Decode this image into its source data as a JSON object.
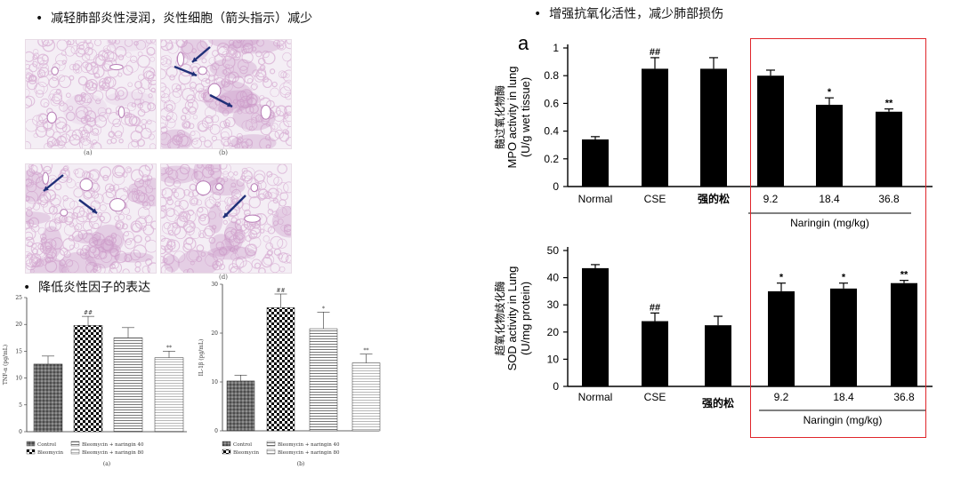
{
  "bullets": {
    "b1": "减轻肺部炎性浸润，炎性细胞（箭头指示）减少",
    "b2": "降低炎性因子的表达",
    "b3": "增强抗氧化活性，减少肺部损伤"
  },
  "histology": {
    "panels": [
      {
        "label": "(a)",
        "arrows": 0
      },
      {
        "label": "(b)",
        "arrows": 3
      },
      {
        "label": "(c)",
        "arrows": 2
      },
      {
        "label": "(d)",
        "arrows": 1
      }
    ],
    "tissue_color": "#d9b3d6",
    "arrow_color": "#1f2f78"
  },
  "chart_data": [
    {
      "id": "tnf",
      "type": "bar",
      "ylabel": "TNF-α (pg/mL)",
      "sublabel": "(a)",
      "ylim": [
        0,
        25
      ],
      "yticks": [
        0,
        5,
        10,
        15,
        20,
        25
      ],
      "categories": [
        "Control",
        "Bleomycin",
        "Bleomycin + naringin 40",
        "Bleomycin + naringin 80"
      ],
      "values": [
        12.6,
        19.8,
        17.5,
        13.8
      ],
      "errors": [
        1.5,
        1.7,
        1.9,
        1.2
      ],
      "marks": [
        "",
        "##",
        "",
        "**"
      ],
      "patterns": [
        "dots",
        "check",
        "hlines",
        "hlines2"
      ]
    },
    {
      "id": "il1b",
      "type": "bar",
      "ylabel": "IL-1β (pg/mL)",
      "sublabel": "(b)",
      "ylim": [
        0,
        30
      ],
      "yticks": [
        0,
        10,
        20,
        30
      ],
      "categories": [
        "Control",
        "Bleomycin",
        "Bleomycin + naringin 40",
        "Bleomycin + naringin 80"
      ],
      "values": [
        10.2,
        25.2,
        20.9,
        13.9
      ],
      "errors": [
        1.2,
        2.8,
        3.4,
        1.8
      ],
      "marks": [
        "",
        "##",
        "*",
        "**"
      ],
      "patterns": [
        "dots",
        "check",
        "hlines",
        "hlines2"
      ]
    },
    {
      "id": "mpo",
      "type": "bar",
      "panel_letter": "a",
      "ylabel_cn": "髓过氧化物酶",
      "ylabel": "MPO activity in lung",
      "ylabel2": "(U/g wet tissue)",
      "ylim": [
        0,
        1
      ],
      "yticks": [
        0,
        0.2,
        0.4,
        0.6,
        0.8,
        1
      ],
      "categories": [
        "Normal",
        "CSE",
        "强的松",
        "9.2",
        "18.4",
        "36.8"
      ],
      "values": [
        0.34,
        0.85,
        0.85,
        0.8,
        0.59,
        0.54
      ],
      "errors": [
        0.02,
        0.08,
        0.08,
        0.04,
        0.05,
        0.02
      ],
      "marks": [
        "",
        "##",
        "",
        "",
        "*",
        "**"
      ],
      "group_label": "Naringin (mg/kg)"
    },
    {
      "id": "sod",
      "type": "bar",
      "ylabel_cn": "超氧化物歧化酶",
      "ylabel": "SOD activity in Lung",
      "ylabel2": "(U/mg protein)",
      "ylim": [
        0,
        50
      ],
      "yticks": [
        0,
        10,
        20,
        30,
        40,
        50
      ],
      "categories": [
        "Normal",
        "CSE",
        "强的松",
        "9.2",
        "18.4",
        "36.8"
      ],
      "values": [
        43.5,
        24.0,
        22.5,
        35.0,
        36.0,
        38.0
      ],
      "errors": [
        1.3,
        3.0,
        3.3,
        3.0,
        2.0,
        1.0
      ],
      "marks": [
        "",
        "##",
        "",
        "*",
        "*",
        "**"
      ],
      "group_label": "Naringin (mg/kg)"
    }
  ],
  "highlight_color": "#e0262b"
}
